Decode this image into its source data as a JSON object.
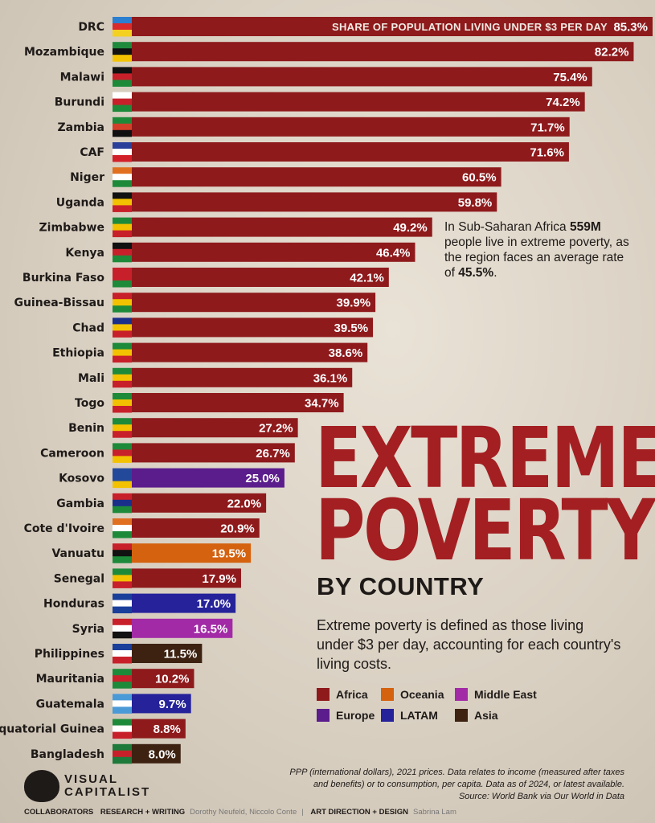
{
  "title": {
    "line1": "EXTREME",
    "line2": "POVERTY",
    "line3": "BY COUNTRY"
  },
  "description": "Extreme poverty is defined as those living under $3 per day, accounting for each country's living costs.",
  "note": {
    "pre": "In Sub-Saharan Africa ",
    "bold1": "559M",
    "mid": " people live in extreme poverty, as the region faces an average rate of ",
    "bold2": "45.5%",
    "post": "."
  },
  "legend": [
    {
      "label": "Africa",
      "color": "#8e1a1c"
    },
    {
      "label": "Oceania",
      "color": "#d4620f"
    },
    {
      "label": "Middle East",
      "color": "#a22aa6"
    },
    {
      "label": "Europe",
      "color": "#5b1c8c"
    },
    {
      "label": "LATAM",
      "color": "#25229a"
    },
    {
      "label": "Asia",
      "color": "#3d2212"
    }
  ],
  "chart_data": {
    "type": "bar",
    "orientation": "horizontal",
    "value_label": "SHARE OF POPULATION LIVING UNDER $3 PER DAY",
    "unit": "%",
    "xlim": [
      0,
      85.3
    ],
    "grid": false,
    "legend_position": "bottom-right",
    "categories": [
      "DRC",
      "Mozambique",
      "Malawi",
      "Burundi",
      "Zambia",
      "CAF",
      "Niger",
      "Uganda",
      "Zimbabwe",
      "Kenya",
      "Burkina Faso",
      "Guinea-Bissau",
      "Chad",
      "Ethiopia",
      "Mali",
      "Togo",
      "Benin",
      "Cameroon",
      "Kosovo",
      "Gambia",
      "Cote d'Ivoire",
      "Vanuatu",
      "Senegal",
      "Honduras",
      "Syria",
      "Philippines",
      "Mauritania",
      "Guatemala",
      "Equatorial Guinea",
      "Bangladesh"
    ],
    "values": [
      85.3,
      82.2,
      75.4,
      74.2,
      71.7,
      71.6,
      60.5,
      59.8,
      49.2,
      46.4,
      42.1,
      39.9,
      39.5,
      38.6,
      36.1,
      34.7,
      27.2,
      26.7,
      25.0,
      22.0,
      20.9,
      19.5,
      17.9,
      17.0,
      16.5,
      11.5,
      10.2,
      9.7,
      8.8,
      8.0
    ],
    "labels": [
      "85.3%",
      "82.2%",
      "75.4%",
      "74.2%",
      "71.7%",
      "71.6%",
      "60.5%",
      "59.8%",
      "49.2%",
      "46.4%",
      "42.1%",
      "39.9%",
      "39.5%",
      "38.6%",
      "36.1%",
      "34.7%",
      "27.2%",
      "26.7%",
      "25.0%",
      "22.0%",
      "20.9%",
      "19.5%",
      "17.9%",
      "17.0%",
      "16.5%",
      "11.5%",
      "10.2%",
      "9.7%",
      "8.8%",
      "8.0%"
    ],
    "regions": [
      "Africa",
      "Africa",
      "Africa",
      "Africa",
      "Africa",
      "Africa",
      "Africa",
      "Africa",
      "Africa",
      "Africa",
      "Africa",
      "Africa",
      "Africa",
      "Africa",
      "Africa",
      "Africa",
      "Africa",
      "Africa",
      "Europe",
      "Africa",
      "Africa",
      "Oceania",
      "Africa",
      "LATAM",
      "Middle East",
      "Asia",
      "Africa",
      "LATAM",
      "Africa",
      "Asia"
    ],
    "flags": [
      [
        "#2a7fd0",
        "#d92b2b",
        "#f4d020"
      ],
      [
        "#1f8a3c",
        "#111111",
        "#f2c200"
      ],
      [
        "#111111",
        "#c8202a",
        "#1d8a3a"
      ],
      [
        "#ffffff",
        "#c8202a",
        "#1d8a3a"
      ],
      [
        "#1d8a3a",
        "#d2402a",
        "#111111"
      ],
      [
        "#2a3f9a",
        "#ffffff",
        "#d2202a"
      ],
      [
        "#e07020",
        "#ffffff",
        "#1d8a3a"
      ],
      [
        "#111111",
        "#f2c200",
        "#c8202a"
      ],
      [
        "#1d8a3a",
        "#f2c200",
        "#c8202a"
      ],
      [
        "#111111",
        "#c8202a",
        "#1d8a3a"
      ],
      [
        "#c8202a",
        "#c8202a",
        "#1d8a3a"
      ],
      [
        "#c8202a",
        "#f2c200",
        "#1d8a3a"
      ],
      [
        "#1a2f8a",
        "#f2c200",
        "#c8202a"
      ],
      [
        "#1d8a3a",
        "#f2c200",
        "#c8202a"
      ],
      [
        "#1d8a3a",
        "#f2c200",
        "#c8202a"
      ],
      [
        "#1d8a3a",
        "#f2c200",
        "#c8202a"
      ],
      [
        "#1d8a3a",
        "#f2c200",
        "#c8202a"
      ],
      [
        "#1d8a3a",
        "#c8202a",
        "#f2c200"
      ],
      [
        "#234a9a",
        "#234a9a",
        "#f2c200"
      ],
      [
        "#c8202a",
        "#1a2f8a",
        "#1d8a3a"
      ],
      [
        "#e07020",
        "#ffffff",
        "#1d8a3a"
      ],
      [
        "#c8202a",
        "#111111",
        "#1d8a3a"
      ],
      [
        "#1d8a3a",
        "#f2c200",
        "#c8202a"
      ],
      [
        "#1a3f9a",
        "#ffffff",
        "#1a3f9a"
      ],
      [
        "#c8202a",
        "#ffffff",
        "#111111"
      ],
      [
        "#1a3f9a",
        "#ffffff",
        "#c8202a"
      ],
      [
        "#1d8a3a",
        "#c8202a",
        "#1d8a3a"
      ],
      [
        "#4a9ad8",
        "#ffffff",
        "#4a9ad8"
      ],
      [
        "#1d8a3a",
        "#ffffff",
        "#c8202a"
      ],
      [
        "#1d7a3a",
        "#c8202a",
        "#1d7a3a"
      ]
    ]
  },
  "footnote": {
    "line1": "PPP (international dollars), 2021 prices. Data relates to income (measured after taxes",
    "line2": "and benefits) or to consumption, per capita. Data as of 2024, or latest available.",
    "line3": "Source: World Bank via Our World in Data"
  },
  "logo": {
    "line1": "VISUAL",
    "line2": "CAPITALIST"
  },
  "credits": {
    "label": "COLLABORATORS",
    "research_label": "RESEARCH + WRITING",
    "research_names": "Dorothy Neufeld, Niccolo Conte",
    "sep": "|",
    "design_label": "ART DIRECTION + DESIGN",
    "design_names": "Sabrina Lam"
  }
}
